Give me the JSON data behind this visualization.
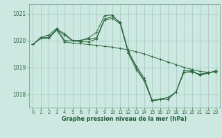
{
  "background_color": "#cce8e0",
  "grid_color": "#a0c8bc",
  "line_color": "#2d6a3f",
  "marker_color": "#2d6a3f",
  "xlabel": "Graphe pression niveau de la mer (hPa)",
  "xlim": [
    -0.5,
    23.5
  ],
  "ylim": [
    1017.5,
    1021.35
  ],
  "yticks": [
    1018,
    1019,
    1020,
    1021
  ],
  "xticks": [
    0,
    1,
    2,
    3,
    4,
    5,
    6,
    7,
    8,
    9,
    10,
    11,
    12,
    13,
    14,
    15,
    16,
    17,
    18,
    19,
    20,
    21,
    22,
    23
  ],
  "series": [
    {
      "x": [
        0,
        1,
        2,
        3,
        4,
        5,
        6,
        7,
        8,
        9,
        10,
        11,
        12,
        13,
        14,
        15,
        16,
        17,
        18,
        19,
        20,
        21,
        22,
        23
      ],
      "y": [
        1019.85,
        1020.1,
        1020.1,
        1020.42,
        1020.25,
        1020.0,
        1020.0,
        1020.05,
        1020.1,
        1020.8,
        1020.88,
        1020.68,
        1019.6,
        1019.05,
        1018.6,
        1017.78,
        1017.82,
        1017.82,
        1018.1,
        1018.82,
        1018.82,
        1018.75,
        1018.8,
        1018.85
      ]
    },
    {
      "x": [
        0,
        1,
        2,
        3,
        4,
        5,
        6,
        7,
        8,
        9,
        10,
        11,
        12,
        13,
        14,
        15,
        16,
        17,
        18,
        19,
        20,
        21,
        22,
        23
      ],
      "y": [
        1019.85,
        1020.12,
        1020.2,
        1020.45,
        1020.0,
        1019.98,
        1020.0,
        1020.1,
        1020.3,
        1020.92,
        1020.95,
        1020.62,
        1019.52,
        1018.92,
        1018.5,
        1017.75,
        1017.82,
        1017.88,
        1018.08,
        1018.88,
        1018.88,
        1018.7,
        1018.78,
        1018.88
      ]
    },
    {
      "x": [
        0,
        1,
        2,
        3,
        4,
        5,
        6,
        7,
        8,
        9,
        10,
        11,
        12,
        13,
        14,
        15,
        16,
        17,
        18,
        19,
        20,
        21,
        22,
        23
      ],
      "y": [
        1019.85,
        1020.08,
        1020.08,
        1020.38,
        1019.95,
        1019.9,
        1019.88,
        1019.85,
        1019.82,
        1019.78,
        1019.75,
        1019.7,
        1019.65,
        1019.58,
        1019.5,
        1019.4,
        1019.3,
        1019.2,
        1019.1,
        1019.0,
        1018.92,
        1018.85,
        1018.82,
        1018.82
      ]
    },
    {
      "x": [
        0,
        1,
        2,
        3,
        4,
        5,
        6,
        7,
        8,
        9,
        10,
        11,
        12,
        13,
        14,
        15,
        16,
        17,
        18,
        19,
        20,
        21,
        22,
        23
      ],
      "y": [
        1019.85,
        1020.08,
        1020.12,
        1020.4,
        1020.2,
        1019.98,
        1019.95,
        1019.95,
        1020.05,
        1020.75,
        1020.82,
        1020.62,
        1019.55,
        1019.0,
        1018.52,
        1017.75,
        1017.8,
        1017.82,
        1018.08,
        1018.82,
        1018.85,
        1018.72,
        1018.78,
        1018.85
      ]
    }
  ]
}
